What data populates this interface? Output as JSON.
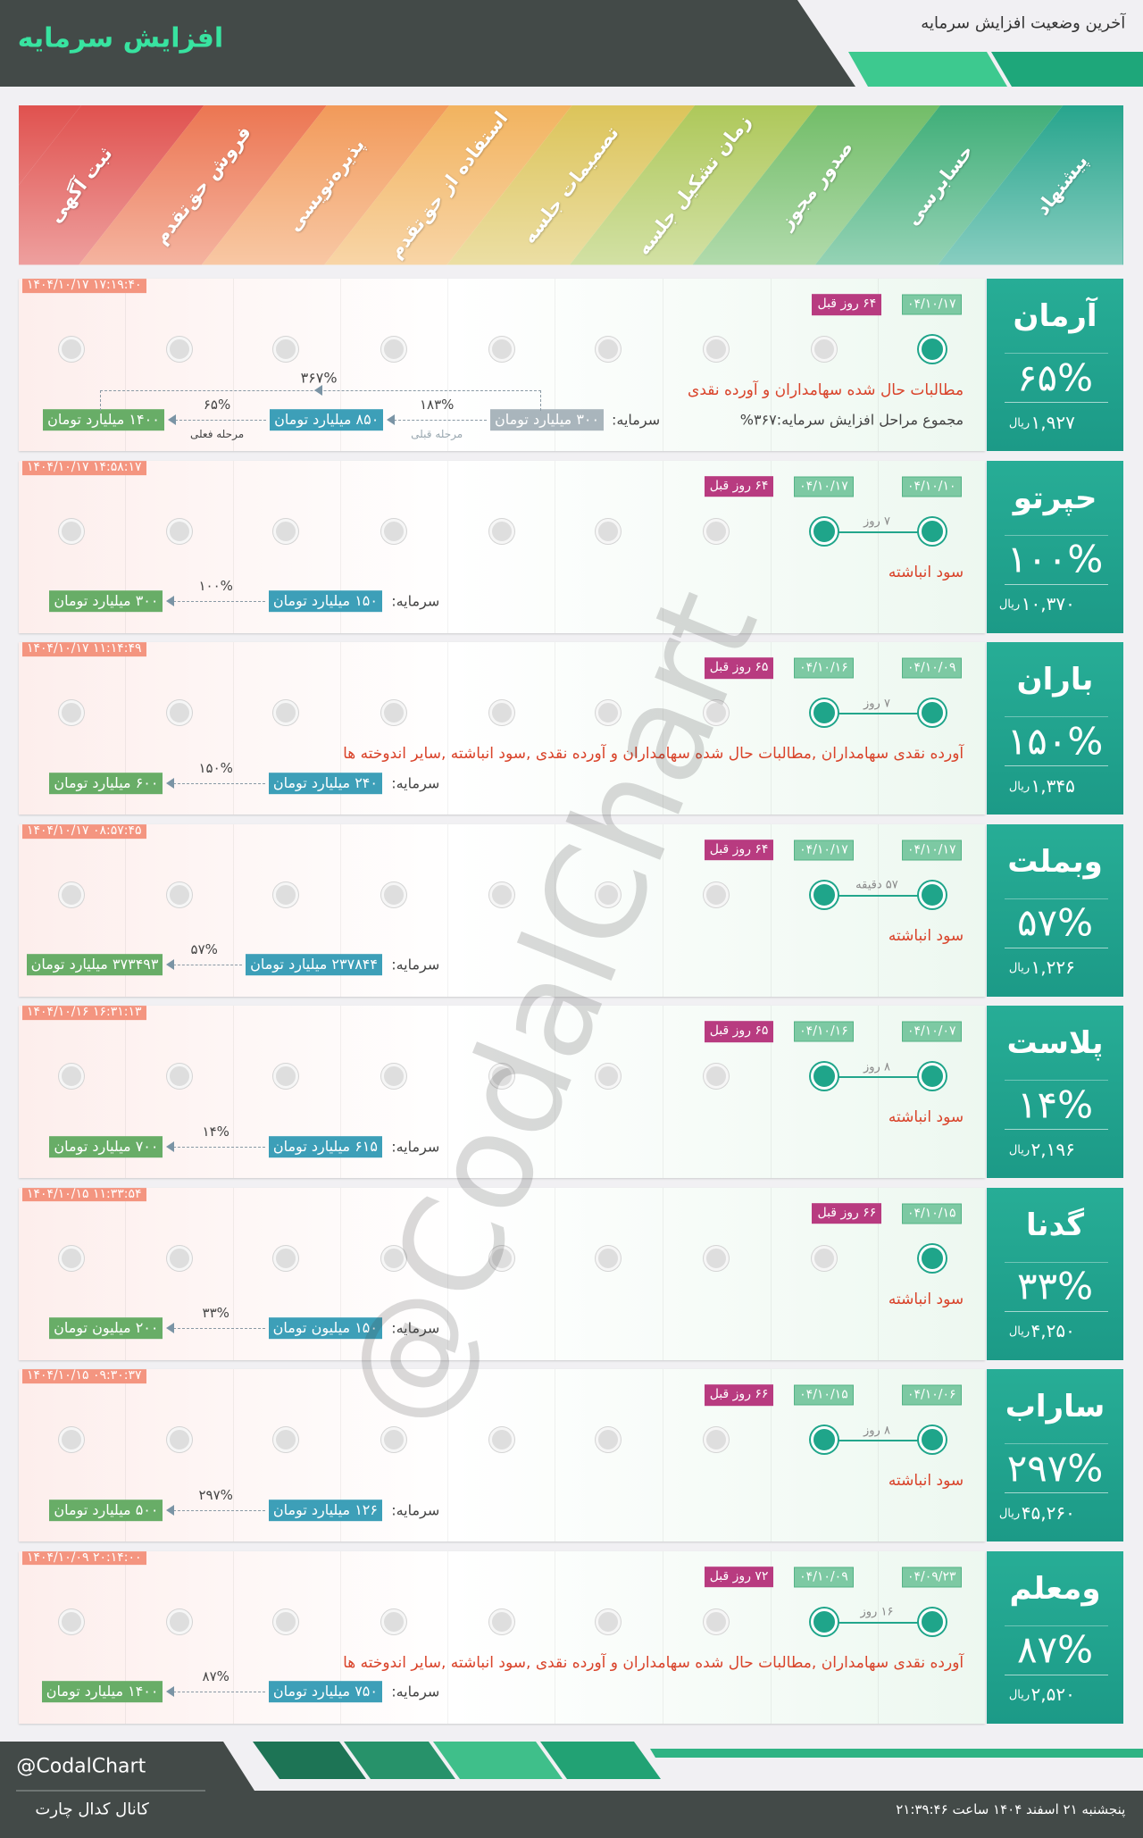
{
  "header": {
    "title": "افزایش سرمایه",
    "subtitle": "آخرین وضعیت افزایش سرمایه"
  },
  "stages": [
    "پیشنهاد",
    "حسابرسی",
    "صدور مجوز",
    "زمان تشکیل جلسه",
    "تصمیمات جلسه",
    "استفاده از حق‌تقدم",
    "پذیره‌نویسی",
    "فروش حق‌تقدم",
    "ثبت آگهی"
  ],
  "currency": "ریال",
  "capital_label": "سرمایه:",
  "rows": [
    {
      "name": "آرمان",
      "percent": "۶۵%",
      "price": "۱,۹۲۷",
      "timestamp": "۱۴۰۴/۱۰/۱۷ ۱۷:۱۹:۴۰",
      "dates": [
        "۰۴/۱۰/۱۷"
      ],
      "days_ago": "۶۴ روز قبل",
      "description": "مطالبات حال شده سهامداران و آورده نقدی",
      "total": "مجموع مراحل افزایش سرمایه:۳۶۷%",
      "capital": [
        "۳۰۰ میلیارد تومان",
        "۸۵۰ میلیارد تومان",
        "۱۴۰۰ میلیارد تومان"
      ],
      "changes": [
        "۱۸۳%",
        "۶۵%"
      ],
      "change_notes": [
        "مرحله قبلی",
        "مرحله فعلی"
      ],
      "total_change": "۳۶۷%"
    },
    {
      "name": "حپرتو",
      "percent": "۱۰۰%",
      "price": "۱۰,۳۷۰",
      "timestamp": "۱۴۰۴/۱۰/۱۷ ۱۴:۵۸:۱۷",
      "dates": [
        "۰۴/۱۰/۱۰",
        "۰۴/۱۰/۱۷"
      ],
      "days_ago": "۶۴ روز قبل",
      "gap": "۷ روز",
      "description": "سود انباشته",
      "capital": [
        "۱۵۰ میلیارد تومان",
        "۳۰۰ میلیارد تومان"
      ],
      "changes": [
        "۱۰۰%"
      ]
    },
    {
      "name": "باران",
      "percent": "۱۵۰%",
      "price": "۱,۳۴۵",
      "timestamp": "۱۴۰۴/۱۰/۱۷ ۱۱:۱۴:۴۹",
      "dates": [
        "۰۴/۱۰/۰۹",
        "۰۴/۱۰/۱۶"
      ],
      "days_ago": "۶۵ روز قبل",
      "gap": "۷ روز",
      "description": "آورده نقدی سهامداران ,مطالبات حال شده سهامداران و آورده نقدی ,سود انباشته ,سایر اندوخته ها",
      "capital": [
        "۲۴۰ میلیارد تومان",
        "۶۰۰ میلیارد تومان"
      ],
      "changes": [
        "۱۵۰%"
      ]
    },
    {
      "name": "وبملت",
      "percent": "۵۷%",
      "price": "۱,۲۲۶",
      "timestamp": "۱۴۰۴/۱۰/۱۷ ۰۸:۵۷:۴۵",
      "dates": [
        "۰۴/۱۰/۱۷",
        "۰۴/۱۰/۱۷"
      ],
      "days_ago": "۶۴ روز قبل",
      "gap": "۵۷ دقیقه",
      "description": "سود انباشته",
      "capital": [
        "۲۳۷۸۴۴ میلیارد تومان",
        "۳۷۳۴۹۳ میلیارد تومان"
      ],
      "changes": [
        "۵۷%"
      ]
    },
    {
      "name": "پلاست",
      "percent": "۱۴%",
      "price": "۲,۱۹۶",
      "timestamp": "۱۴۰۴/۱۰/۱۶ ۱۶:۳۱:۱۳",
      "dates": [
        "۰۴/۱۰/۰۷",
        "۰۴/۱۰/۱۶"
      ],
      "days_ago": "۶۵ روز قبل",
      "gap": "۸ روز",
      "description": "سود انباشته",
      "capital": [
        "۶۱۵ میلیارد تومان",
        "۷۰۰ میلیارد تومان"
      ],
      "changes": [
        "۱۴%"
      ]
    },
    {
      "name": "گدنا",
      "percent": "۳۳%",
      "price": "۴,۲۵۰",
      "timestamp": "۱۴۰۴/۱۰/۱۵ ۱۱:۳۳:۵۴",
      "dates": [
        "۰۴/۱۰/۱۵"
      ],
      "days_ago": "۶۶ روز قبل",
      "description": "سود انباشته",
      "capital": [
        "۱۵۰ میلیون تومان",
        "۲۰۰ میلیون تومان"
      ],
      "changes": [
        "۳۳%"
      ]
    },
    {
      "name": "ساراب",
      "percent": "۲۹۷%",
      "price": "۴۵,۲۶۰",
      "timestamp": "۱۴۰۴/۱۰/۱۵ ۰۹:۳۰:۳۷",
      "dates": [
        "۰۴/۱۰/۰۶",
        "۰۴/۱۰/۱۵"
      ],
      "days_ago": "۶۶ روز قبل",
      "gap": "۸ روز",
      "description": "سود انباشته",
      "capital": [
        "۱۲۶ میلیارد تومان",
        "۵۰۰ میلیارد تومان"
      ],
      "changes": [
        "۲۹۷%"
      ]
    },
    {
      "name": "ومعلم",
      "percent": "۸۷%",
      "price": "۲,۵۲۰",
      "timestamp": "۱۴۰۴/۱۰/۰۹ ۲۰:۱۴:۰۰",
      "dates": [
        "۰۴/۰۹/۲۳",
        "۰۴/۱۰/۰۹"
      ],
      "days_ago": "۷۲ روز قبل",
      "gap": "۱۶ روز",
      "description": "آورده نقدی سهامداران ,مطالبات حال شده سهامداران و آورده نقدی ,سود انباشته ,سایر اندوخته ها",
      "capital": [
        "۷۵۰ میلیارد تومان",
        "۱۴۰۰ میلیارد تومان"
      ],
      "changes": [
        "۸۷%"
      ]
    }
  ],
  "watermark": "@CodalChart",
  "footer": {
    "handle": "@CodalChart",
    "channel": "کانال کدال چارت",
    "datetime": "پنجشنبه ۲۱ اسفند ۱۴۰۴ ساعت ۲۱:۳۹:۴۶"
  }
}
